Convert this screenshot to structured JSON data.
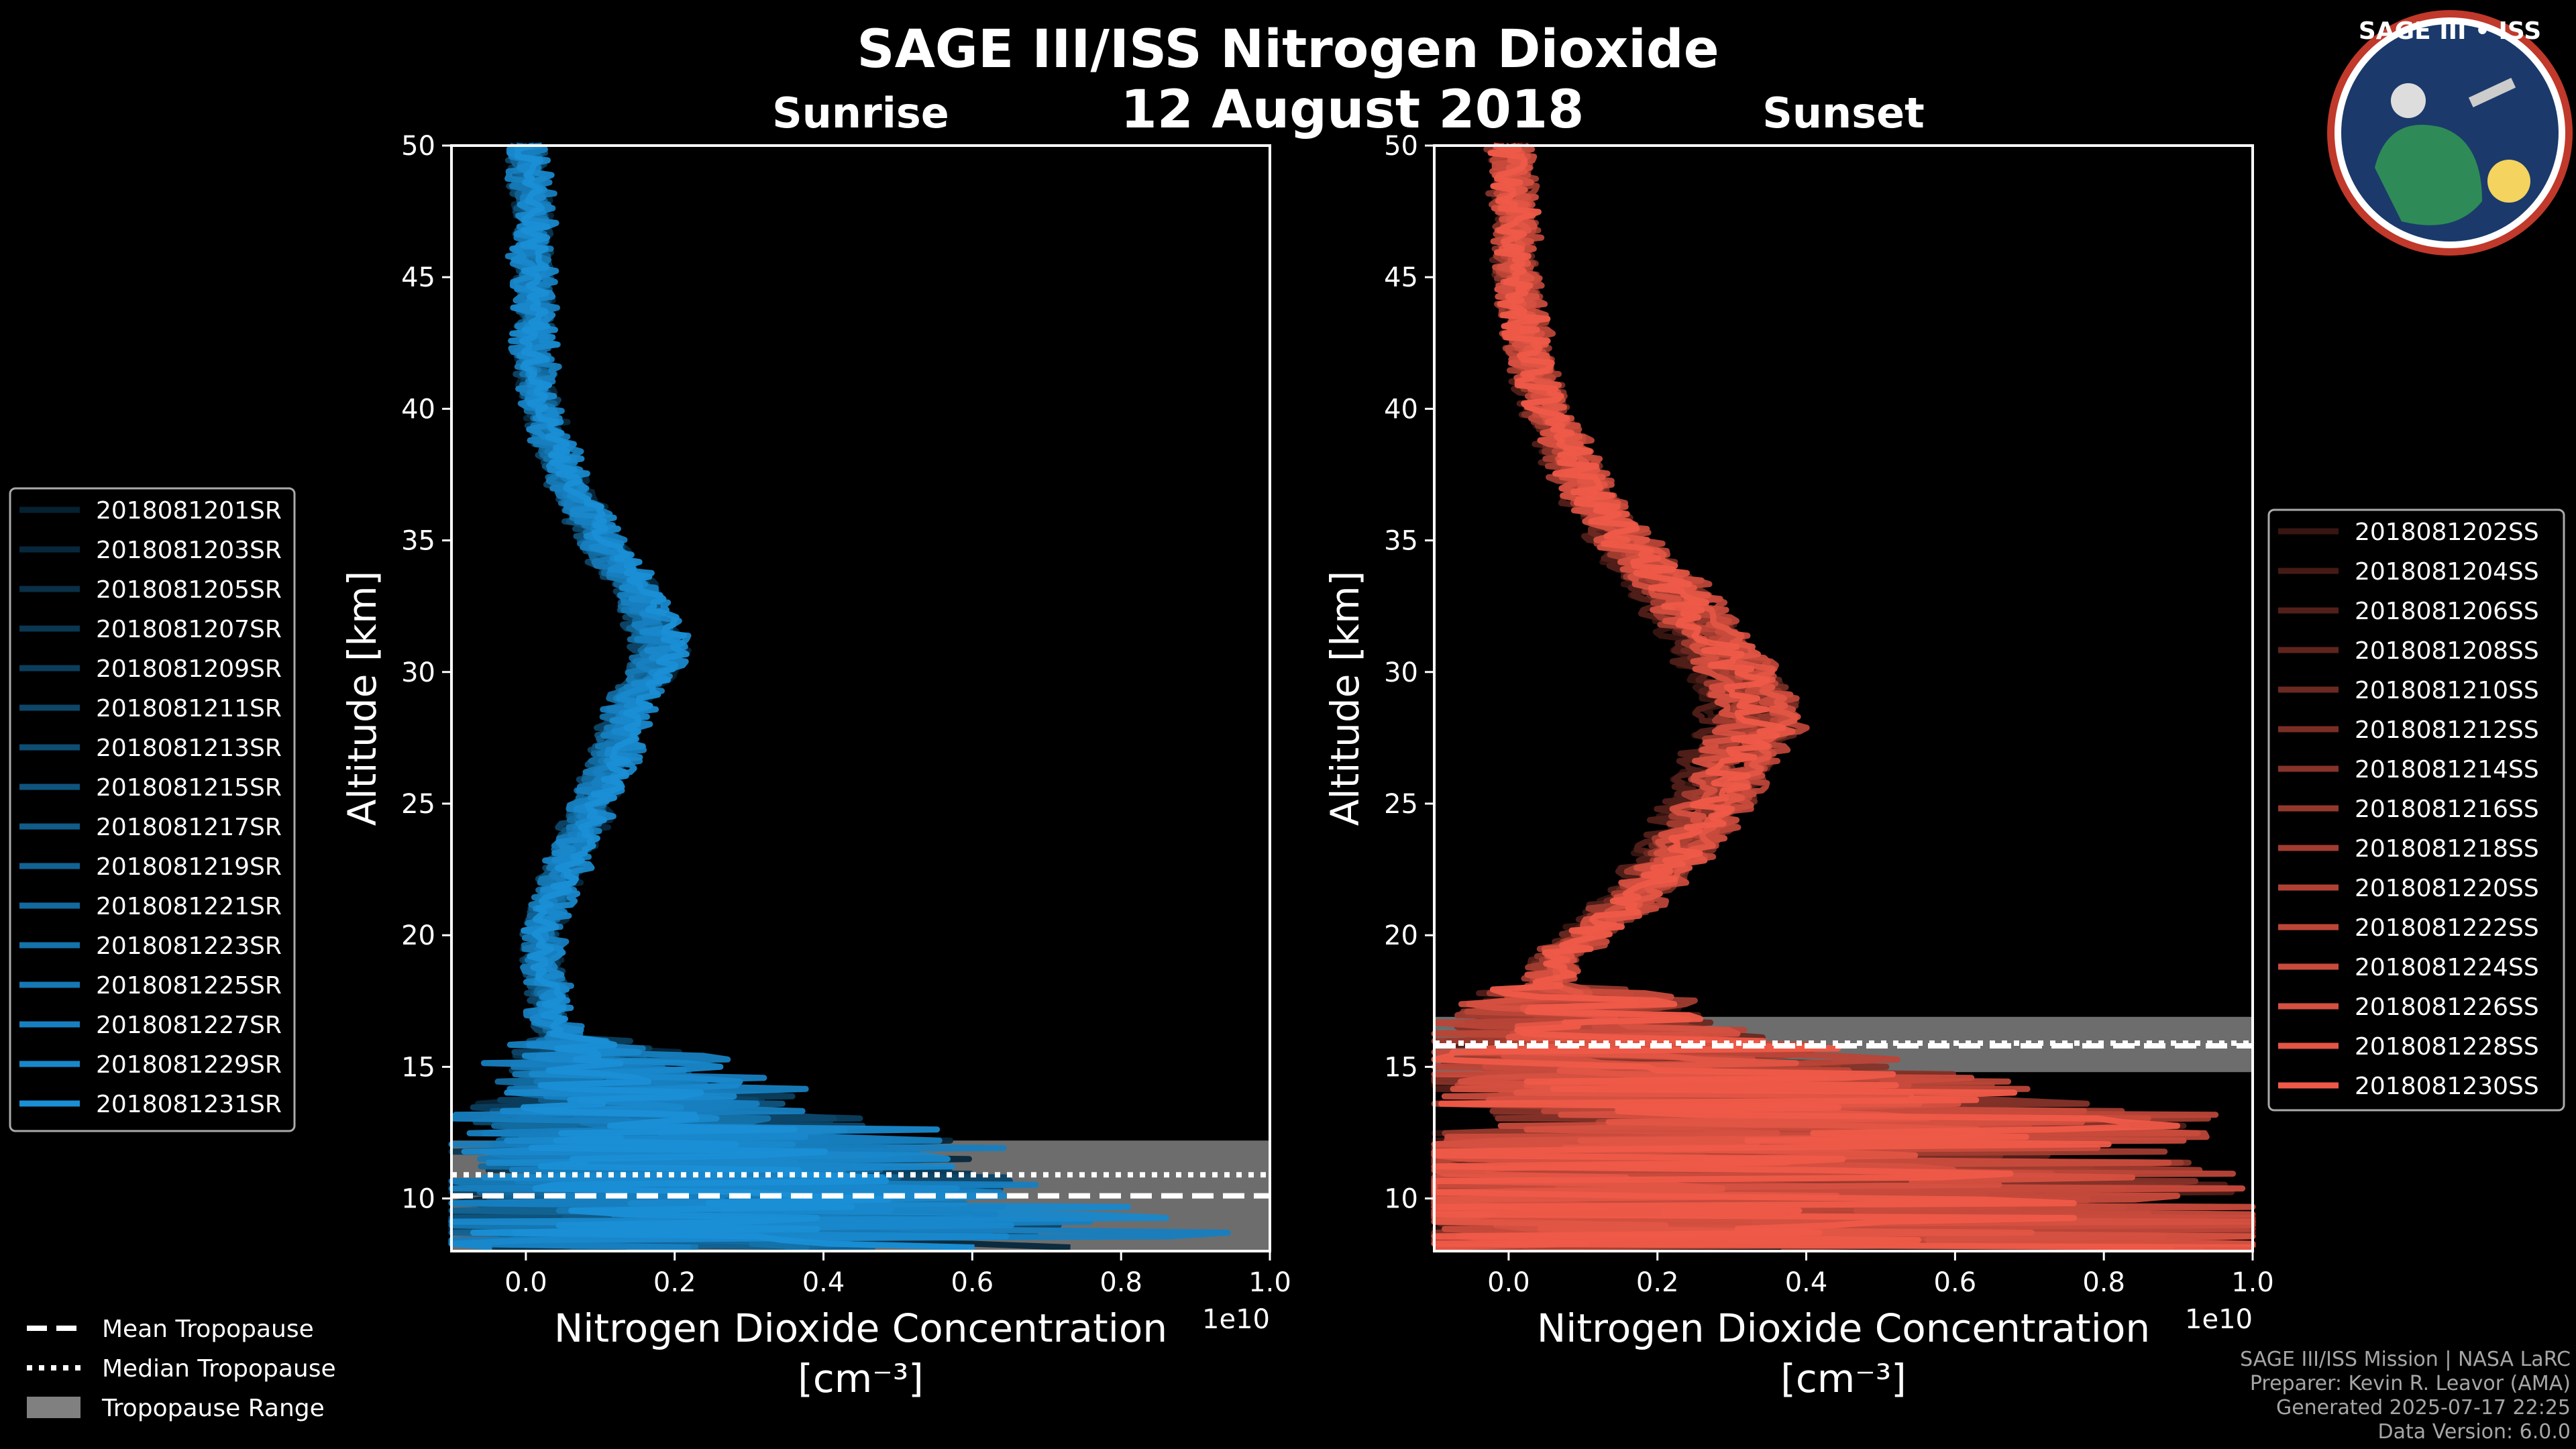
{
  "title": "SAGE III/ISS Nitrogen Dioxide",
  "date": "12 August 2018",
  "logo": {
    "text": "SAGE III • ISS"
  },
  "colors": {
    "sunrise": "#1a8fd6",
    "sunset": "#ef5a48",
    "tropopause_range": "#808080",
    "background": "#000000"
  },
  "chart_data": [
    {
      "type": "line",
      "panel": "sunrise",
      "title": "Sunrise",
      "xlabel": "Nitrogen Dioxide Concentration",
      "xunit": "[cm⁻³]",
      "ylabel": "Altitude [km]",
      "xlim": [
        -0.1,
        1.0
      ],
      "ylim": [
        8,
        50
      ],
      "x_scale_label": "1e10",
      "xticks": [
        "0.0",
        "0.2",
        "0.4",
        "0.6",
        "0.8",
        "1.0"
      ],
      "yticks": [
        "10",
        "15",
        "20",
        "25",
        "30",
        "35",
        "40",
        "45",
        "50"
      ],
      "profile_shape": {
        "altitudes": [
          50,
          47,
          45,
          42,
          40,
          37,
          35,
          33,
          31,
          30,
          29,
          27,
          25,
          23,
          21,
          20,
          19,
          18,
          17,
          16,
          15,
          14,
          13,
          12.5,
          12
        ],
        "median_no2_1e10": [
          0.0,
          0.01,
          0.01,
          0.01,
          0.02,
          0.06,
          0.1,
          0.15,
          0.18,
          0.17,
          0.14,
          0.12,
          0.09,
          0.06,
          0.03,
          0.02,
          0.02,
          0.03,
          0.03,
          0.05,
          0.05,
          0.08,
          0.1,
          0.12,
          0.13
        ]
      },
      "series": [
        {
          "name": "2018081201SR"
        },
        {
          "name": "2018081203SR"
        },
        {
          "name": "2018081205SR"
        },
        {
          "name": "2018081207SR"
        },
        {
          "name": "2018081209SR"
        },
        {
          "name": "2018081211SR"
        },
        {
          "name": "2018081213SR"
        },
        {
          "name": "2018081215SR"
        },
        {
          "name": "2018081217SR"
        },
        {
          "name": "2018081219SR"
        },
        {
          "name": "2018081221SR"
        },
        {
          "name": "2018081223SR"
        },
        {
          "name": "2018081225SR"
        },
        {
          "name": "2018081227SR"
        },
        {
          "name": "2018081229SR"
        },
        {
          "name": "2018081231SR"
        }
      ],
      "tropopause": {
        "mean": 10.1,
        "median": 10.9,
        "range": [
          8.0,
          12.2
        ]
      }
    },
    {
      "type": "line",
      "panel": "sunset",
      "title": "Sunset",
      "xlabel": "Nitrogen Dioxide Concentration",
      "xunit": "[cm⁻³]",
      "ylabel": "Altitude [km]",
      "xlim": [
        -0.1,
        1.0
      ],
      "ylim": [
        8,
        50
      ],
      "x_scale_label": "1e10",
      "xticks": [
        "0.0",
        "0.2",
        "0.4",
        "0.6",
        "0.8",
        "1.0"
      ],
      "yticks": [
        "10",
        "15",
        "20",
        "25",
        "30",
        "35",
        "40",
        "45",
        "50"
      ],
      "profile_shape": {
        "altitudes": [
          50,
          47,
          45,
          42,
          40,
          37,
          35,
          33,
          31,
          30,
          29,
          28,
          27,
          25,
          23,
          21,
          20,
          19,
          18,
          17,
          16,
          15,
          14,
          13,
          12,
          11
        ],
        "median_no2_1e10": [
          0.0,
          0.01,
          0.01,
          0.03,
          0.05,
          0.1,
          0.15,
          0.22,
          0.27,
          0.3,
          0.32,
          0.33,
          0.3,
          0.27,
          0.22,
          0.15,
          0.1,
          0.06,
          0.05,
          0.05,
          0.07,
          0.1,
          0.15,
          0.3,
          0.12,
          0.1
        ]
      },
      "series": [
        {
          "name": "2018081202SS"
        },
        {
          "name": "2018081204SS"
        },
        {
          "name": "2018081206SS"
        },
        {
          "name": "2018081208SS"
        },
        {
          "name": "2018081210SS"
        },
        {
          "name": "2018081212SS"
        },
        {
          "name": "2018081214SS"
        },
        {
          "name": "2018081216SS"
        },
        {
          "name": "2018081218SS"
        },
        {
          "name": "2018081220SS"
        },
        {
          "name": "2018081222SS"
        },
        {
          "name": "2018081224SS"
        },
        {
          "name": "2018081226SS"
        },
        {
          "name": "2018081228SS"
        },
        {
          "name": "2018081230SS"
        }
      ],
      "tropopause": {
        "mean": 15.8,
        "median": 15.9,
        "range": [
          14.8,
          16.9
        ]
      }
    }
  ],
  "shared_legend": [
    {
      "label": "Mean Tropopause",
      "style": "dashed"
    },
    {
      "label": "Median Tropopause",
      "style": "dotted"
    },
    {
      "label": "Tropopause Range",
      "style": "patch"
    }
  ],
  "footer": [
    "SAGE III/ISS Mission | NASA LaRC",
    "Preparer: Kevin R. Leavor (AMA)",
    "Generated 2025-07-17 22:25",
    "Data Version: 6.0.0"
  ]
}
